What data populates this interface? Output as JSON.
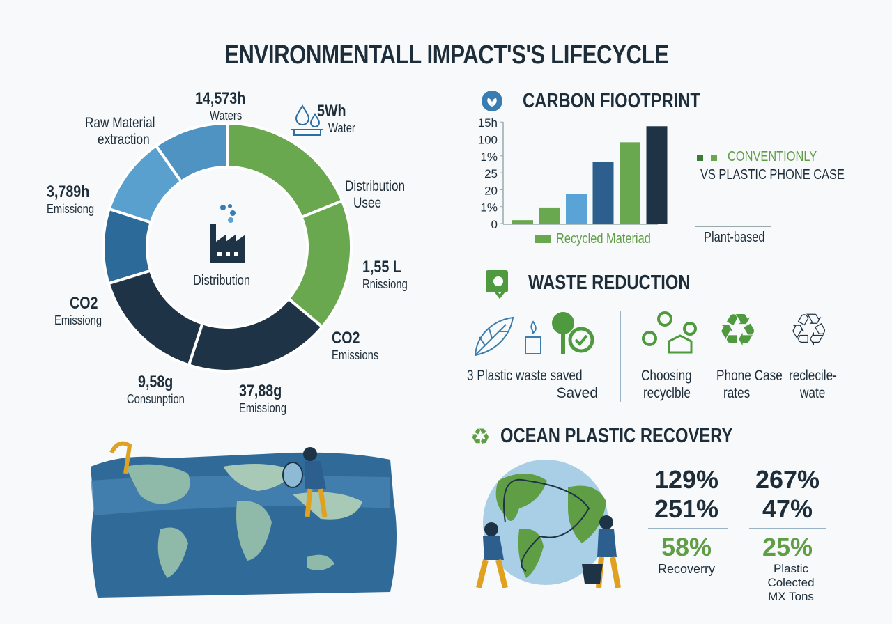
{
  "title": "ENVIRONMENTALL IMPACT'S'S LIFECYCLE",
  "colors": {
    "navy": "#1e3346",
    "green": "#6aa84f",
    "blue": "#2c5f8e",
    "light_blue": "#5aa3d6",
    "text": "#1e2d3a"
  },
  "lifecycle": {
    "center_label": "Distribution",
    "center_icon": "factory-icon",
    "labels": [
      {
        "value": "14,573h",
        "caption": "Waters"
      },
      {
        "value": "5Wh",
        "caption": "Water",
        "icon": "water-drops-icon"
      },
      {
        "value": "Distribution",
        "caption": "Usee"
      },
      {
        "value": "1,55 L",
        "caption": "Rnissiong"
      },
      {
        "value": "CO2",
        "caption": "Emissions"
      },
      {
        "value": "37,88g",
        "caption": "Emissiong"
      },
      {
        "value": "9,58g",
        "caption": "Consunption"
      },
      {
        "value": "CO2",
        "caption": "Emissiong"
      },
      {
        "value": "3,789h",
        "caption": "Emissiong"
      },
      {
        "value": "Raw Material",
        "caption": "extraction"
      }
    ]
  },
  "carbon": {
    "title": "CARBON FIOOTPRINT",
    "legend_conventional": "CONVENTIONLY",
    "legend_vs": "VS PLASTIC PHONE CASE",
    "legend_recycled": "Recycled Materiad",
    "legend_plant": "Plant-based"
  },
  "chart_data": {
    "type": "bar",
    "title": "CARBON FIOOTPRINT",
    "y_tick_labels": [
      "0",
      "1%",
      "20",
      "25",
      "1%",
      "100",
      "15h"
    ],
    "values_in_tick_steps": [
      0.2,
      0.95,
      1.75,
      3.65,
      4.8,
      5.75
    ],
    "bar_colors": [
      "#6aa84f",
      "#6aa84f",
      "#5aa3d6",
      "#2c5f8e",
      "#6aa84f",
      "#1e3346"
    ],
    "ylim_tick_steps": [
      0,
      6
    ],
    "grid": false,
    "legend": "right"
  },
  "waste": {
    "title": "WASTE REDUCTION",
    "items": [
      {
        "label": "3 Plastic waste saved",
        "label2": "Saved"
      },
      {
        "label": "Choosing",
        "label2": "recyclble"
      },
      {
        "label": "Phone Case",
        "label2": "rates"
      },
      {
        "label": "reclecile-",
        "label2": "wate"
      }
    ]
  },
  "ocean": {
    "title": "OCEAN PLASTIC RECOVERY",
    "stats": [
      {
        "top": "129%",
        "mid": "251%",
        "accent": "58%",
        "caption": "Recoverry",
        "caption2": ""
      },
      {
        "top": "267%",
        "mid": "47%",
        "accent": "25%",
        "caption": "Plastic Colected",
        "caption2": "MX Tons"
      }
    ]
  }
}
